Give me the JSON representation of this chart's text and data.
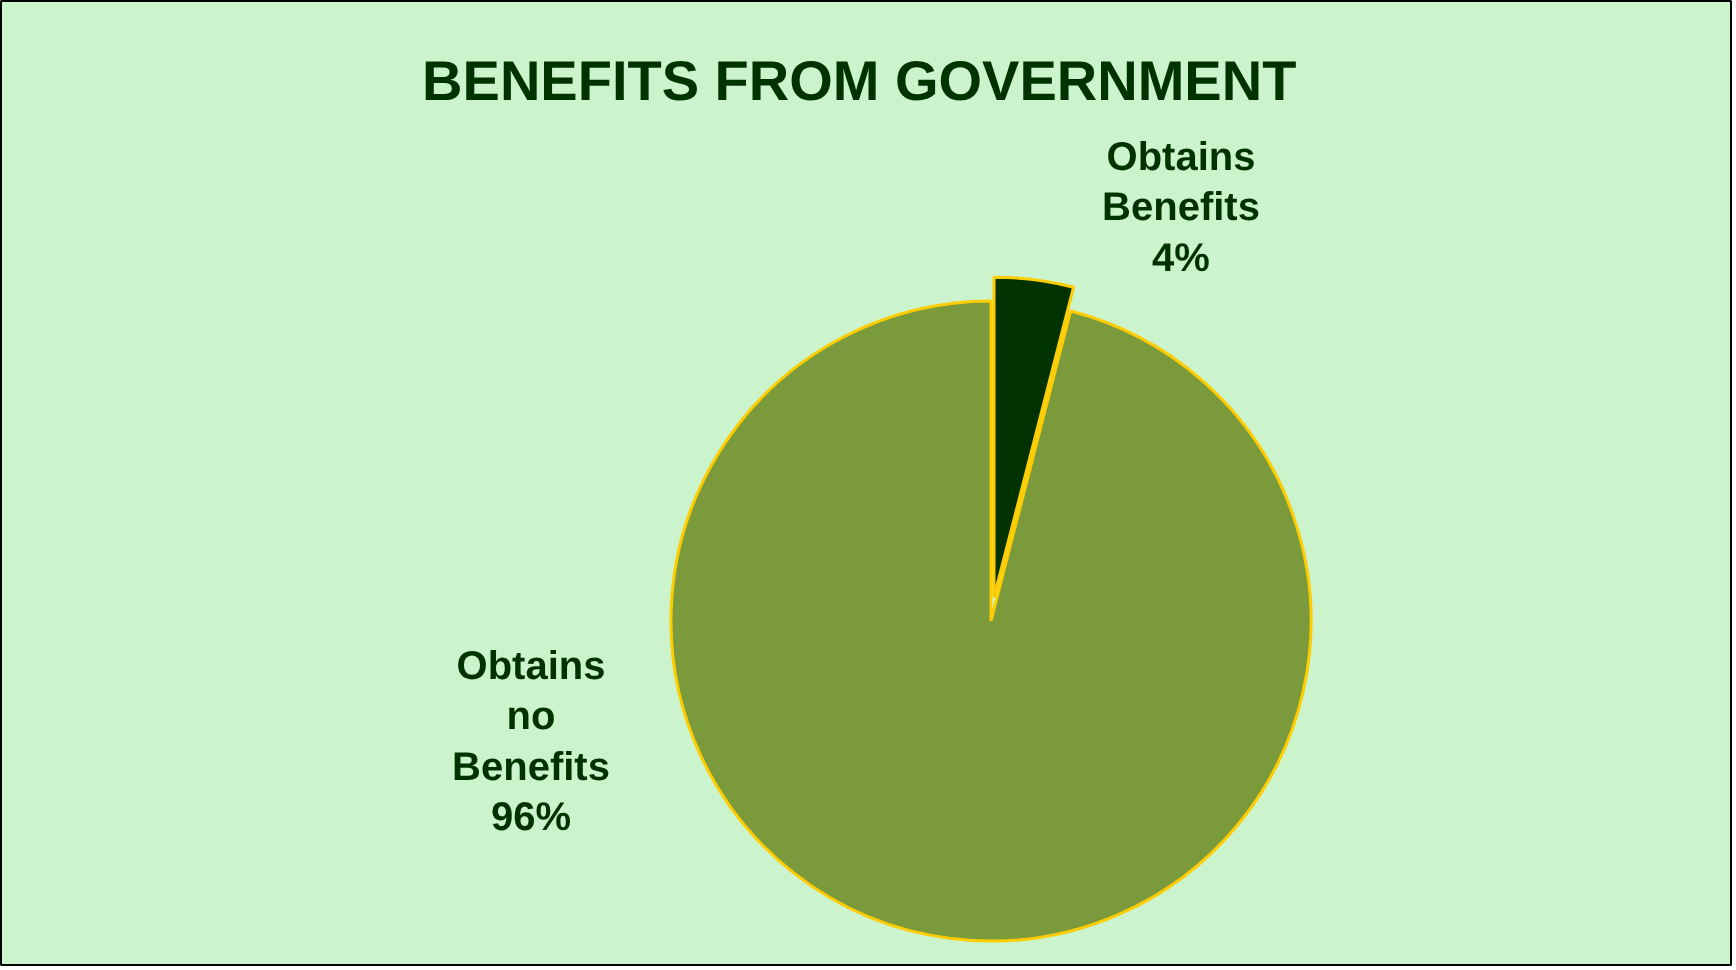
{
  "chart_data": {
    "type": "pie",
    "title": "BENEFITS  FROM GOVERNMENT",
    "categories": [
      "Obtains Benefits",
      "Obtains no Benefits"
    ],
    "values": [
      4,
      96
    ],
    "colors": [
      "#003300",
      "#7a9a3c"
    ],
    "value_labels": [
      "4%",
      "96%"
    ]
  }
}
